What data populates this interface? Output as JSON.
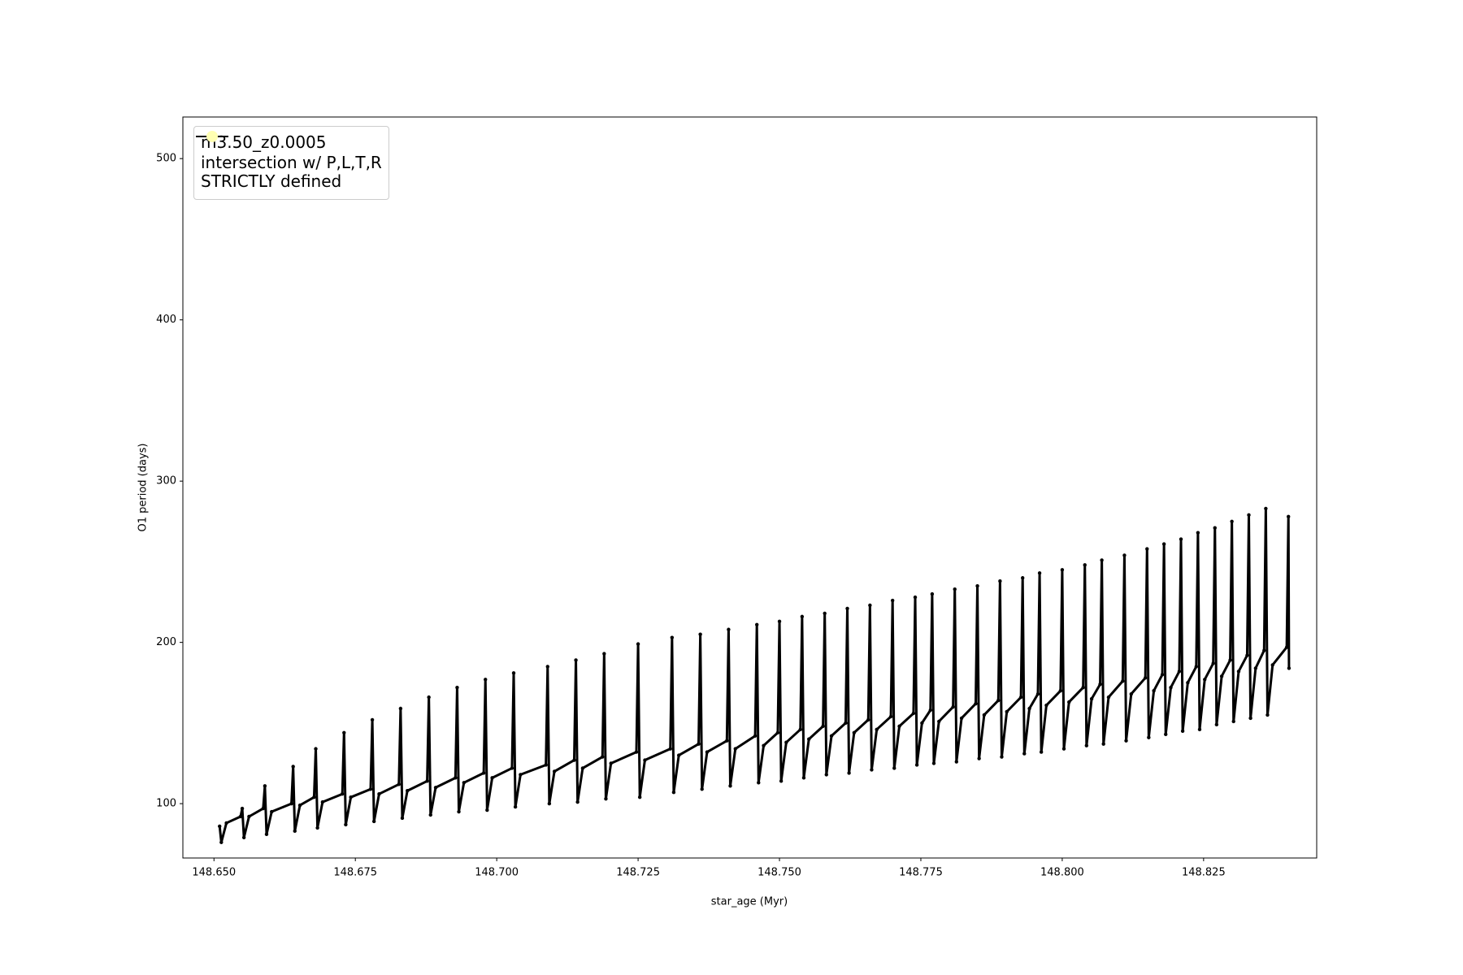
{
  "chart_data": {
    "type": "line",
    "xlabel": "star_age (Myr)",
    "ylabel": "O1 period (days)",
    "xlim": [
      148.6445,
      148.845
    ],
    "ylim": [
      66.3,
      525.8
    ],
    "xticks": [
      {
        "value": 148.65,
        "label": "148.650"
      },
      {
        "value": 148.675,
        "label": "148.675"
      },
      {
        "value": 148.7,
        "label": "148.700"
      },
      {
        "value": 148.725,
        "label": "148.725"
      },
      {
        "value": 148.75,
        "label": "148.750"
      },
      {
        "value": 148.775,
        "label": "148.775"
      },
      {
        "value": 148.8,
        "label": "148.800"
      },
      {
        "value": 148.825,
        "label": "148.825"
      }
    ],
    "yticks": [
      100,
      200,
      300,
      400,
      500
    ],
    "grid": false,
    "legend": "upper left",
    "series": [
      {
        "name": "m3.50_z0.0005",
        "color": "#000000",
        "x": [
          148.651,
          148.6513,
          148.6522,
          148.6547,
          148.655,
          148.6553,
          148.6562,
          148.6587,
          148.659,
          148.6593,
          148.6602,
          148.6637,
          148.664,
          148.6643,
          148.6652,
          148.6677,
          148.668,
          148.6683,
          148.6692,
          148.6727,
          148.673,
          148.6733,
          148.6742,
          148.6777,
          148.678,
          148.6783,
          148.6792,
          148.6827,
          148.683,
          148.6833,
          148.6842,
          148.6877,
          148.688,
          148.6883,
          148.6892,
          148.6927,
          148.693,
          148.6933,
          148.6942,
          148.6977,
          148.698,
          148.6983,
          148.6992,
          148.7027,
          148.703,
          148.7033,
          148.7042,
          148.7087,
          148.709,
          148.7093,
          148.7102,
          148.7137,
          148.714,
          148.7143,
          148.7152,
          148.7187,
          148.719,
          148.7193,
          148.7202,
          148.7247,
          148.725,
          148.7253,
          148.7262,
          148.7307,
          148.731,
          148.7313,
          148.7322,
          148.7357,
          148.736,
          148.7363,
          148.7372,
          148.7407,
          148.741,
          148.7413,
          148.7422,
          148.7457,
          148.746,
          148.7463,
          148.7472,
          148.7497,
          148.75,
          148.7503,
          148.7512,
          148.7537,
          148.754,
          148.7543,
          148.7552,
          148.7577,
          148.758,
          148.7583,
          148.7592,
          148.7617,
          148.762,
          148.7623,
          148.7632,
          148.7657,
          148.766,
          148.7663,
          148.7672,
          148.7697,
          148.77,
          148.7703,
          148.7712,
          148.7737,
          148.774,
          148.7743,
          148.7752,
          148.7767,
          148.777,
          148.7773,
          148.7782,
          148.7807,
          148.781,
          148.7813,
          148.7822,
          148.7847,
          148.785,
          148.7853,
          148.7862,
          148.7887,
          148.789,
          148.7893,
          148.7902,
          148.7927,
          148.793,
          148.7933,
          148.7942,
          148.7957,
          148.796,
          148.7963,
          148.7972,
          148.7997,
          148.8,
          148.8003,
          148.8012,
          148.8037,
          148.804,
          148.8043,
          148.8052,
          148.8067,
          148.807,
          148.8073,
          148.8082,
          148.8107,
          148.811,
          148.8113,
          148.8122,
          148.8147,
          148.815,
          148.8153,
          148.8162,
          148.8177,
          148.818,
          148.8183,
          148.8192,
          148.8207,
          148.821,
          148.8213,
          148.8222,
          148.8237,
          148.824,
          148.8243,
          148.8252,
          148.8267,
          148.827,
          148.8273,
          148.8282,
          148.8297,
          148.83,
          148.8303,
          148.8312,
          148.8327,
          148.833,
          148.8333,
          148.8342,
          148.8357,
          148.836,
          148.8363,
          148.8372,
          148.8397,
          148.84,
          148.8401
        ],
        "values": [
          86,
          76,
          88,
          92,
          97,
          79,
          92,
          97,
          111,
          81,
          95,
          100,
          123,
          83,
          99,
          104,
          134,
          85,
          101,
          106,
          144,
          87,
          104,
          109,
          152,
          89,
          106,
          112,
          159,
          91,
          108,
          114,
          166,
          93,
          110,
          116,
          172,
          95,
          113,
          119,
          177,
          96,
          116,
          122,
          181,
          98,
          118,
          124,
          185,
          100,
          120,
          127,
          189,
          101,
          122,
          129,
          193,
          103,
          125,
          132,
          199,
          104,
          127,
          134,
          203,
          107,
          130,
          137,
          205,
          109,
          132,
          139,
          208,
          111,
          134,
          142,
          211,
          113,
          136,
          144,
          213,
          114,
          138,
          146,
          216,
          116,
          140,
          148,
          218,
          118,
          142,
          150,
          221,
          119,
          144,
          152,
          223,
          121,
          146,
          154,
          226,
          122,
          148,
          156,
          228,
          124,
          150,
          158,
          230,
          125,
          151,
          160,
          233,
          126,
          153,
          162,
          235,
          128,
          155,
          164,
          238,
          129,
          157,
          166,
          240,
          131,
          159,
          168,
          243,
          132,
          161,
          170,
          245,
          134,
          163,
          172,
          248,
          136,
          165,
          174,
          251,
          137,
          166,
          176,
          254,
          139,
          168,
          178,
          258,
          141,
          170,
          180,
          261,
          143,
          172,
          182,
          264,
          145,
          175,
          185,
          268,
          146,
          177,
          187,
          271,
          149,
          179,
          189,
          275,
          151,
          182,
          192,
          279,
          153,
          184,
          195,
          283,
          155,
          186,
          197,
          278,
          184
        ]
      },
      {
        "name": "intersection w/ P,L,T,R\nSTRICTLY defined",
        "color": "#ffffb3",
        "type": "scatter",
        "x": [],
        "values": []
      }
    ]
  }
}
